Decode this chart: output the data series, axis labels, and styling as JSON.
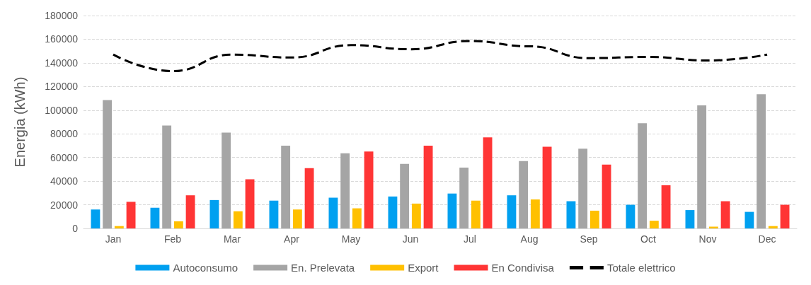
{
  "chart_data": {
    "type": "bar",
    "ylabel": "Energia (kWh)",
    "categories": [
      "Jan",
      "Feb",
      "Mar",
      "Apr",
      "May",
      "Jun",
      "Jul",
      "Aug",
      "Sep",
      "Oct",
      "Nov",
      "Dec"
    ],
    "series": [
      {
        "name": "Autoconsumo",
        "color": "#00a0f0",
        "values": [
          16000,
          17500,
          24000,
          23500,
          26000,
          27000,
          29500,
          28000,
          23000,
          20000,
          15500,
          14000
        ]
      },
      {
        "name": "En. Prelevata",
        "color": "#a5a5a5",
        "values": [
          108500,
          87000,
          81000,
          70000,
          63500,
          54500,
          51500,
          57000,
          67500,
          89000,
          104000,
          113500
        ]
      },
      {
        "name": "Export",
        "color": "#ffc000",
        "values": [
          2000,
          6000,
          14500,
          16000,
          17000,
          21000,
          23500,
          24500,
          15000,
          6500,
          1500,
          2000
        ]
      },
      {
        "name": "En Condivisa",
        "color": "#ff3535",
        "values": [
          22500,
          28000,
          41500,
          51000,
          65000,
          70000,
          77000,
          69000,
          54000,
          36500,
          23000,
          20000
        ]
      },
      {
        "name": "Totale elettrico",
        "type": "line",
        "color": "#000000",
        "line_style": "dashed",
        "marker": "none",
        "values": [
          147000,
          133000,
          147000,
          144500,
          155000,
          151500,
          158500,
          154000,
          144000,
          145000,
          142000,
          147000
        ]
      }
    ],
    "ylim": [
      0,
      180000
    ],
    "yticks": [
      0,
      20000,
      40000,
      60000,
      80000,
      100000,
      120000,
      140000,
      160000,
      180000
    ],
    "grid": "y",
    "legend": "bottom"
  }
}
